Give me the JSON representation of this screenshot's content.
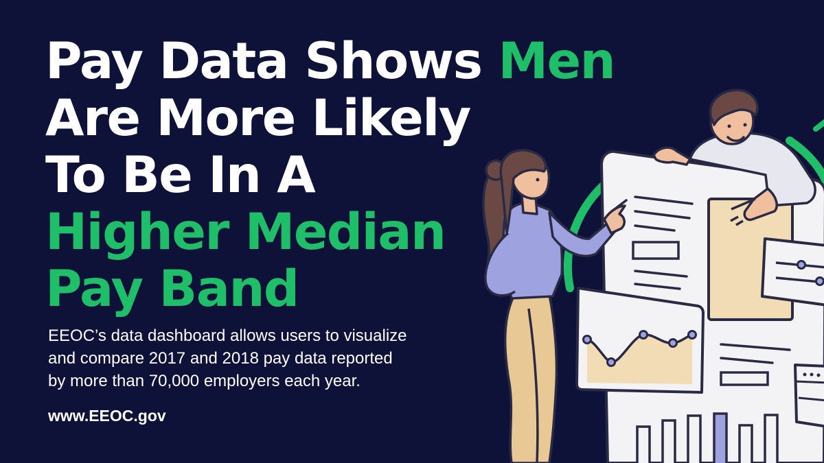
{
  "headline": {
    "line1": "Pay Data Shows ",
    "line1_highlight": "Men",
    "line2": "Are More Likely",
    "line3": "To Be In A",
    "line4_highlight": "Higher Median",
    "line5_highlight": "Pay Band"
  },
  "subtext": {
    "line1": "EEOC’s data dashboard allows users to visualize",
    "line2": "and compare 2017 and 2018 pay data reported",
    "line3": "by more than 70,000 employers each year."
  },
  "website": "www.EEOC.gov",
  "colors": {
    "background": "#0f1238",
    "accent_green": "#1fbf6a",
    "text": "#ffffff",
    "panel_outline": "#2a2a44",
    "panel_fill": "#f3f3f6",
    "card_beige": "#f2dcb6",
    "shirt_lavender": "#9ea3e0",
    "pants_tan": "#e8c894",
    "hair_brown": "#6a4844"
  },
  "illustration": {
    "icon": "dashboard-collaboration-illustration"
  }
}
